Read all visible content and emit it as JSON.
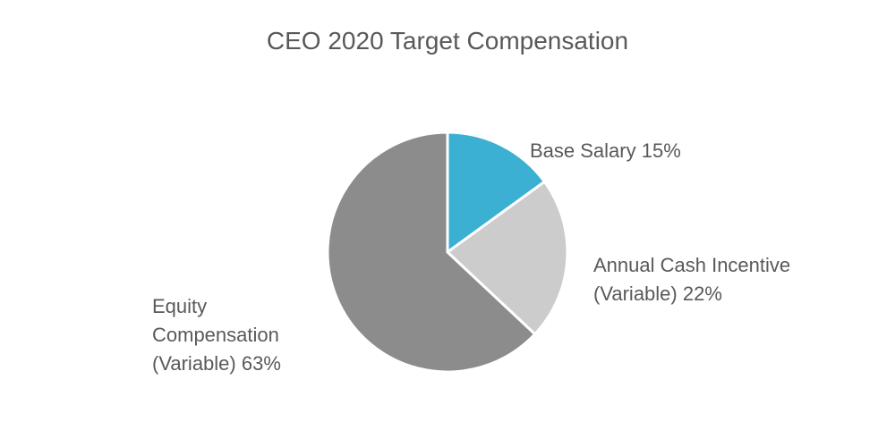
{
  "chart_data": {
    "type": "pie",
    "title": "CEO 2020 Target Compensation",
    "categories": [
      "Base Salary",
      "Annual Cash Incentive (Variable)",
      "Equity Compensation (Variable)"
    ],
    "values": [
      15,
      22,
      63
    ],
    "value_labels": [
      "15%",
      "22%",
      "63%"
    ],
    "colors": [
      "#3bb0d3",
      "#cccccc",
      "#8c8c8c"
    ]
  }
}
